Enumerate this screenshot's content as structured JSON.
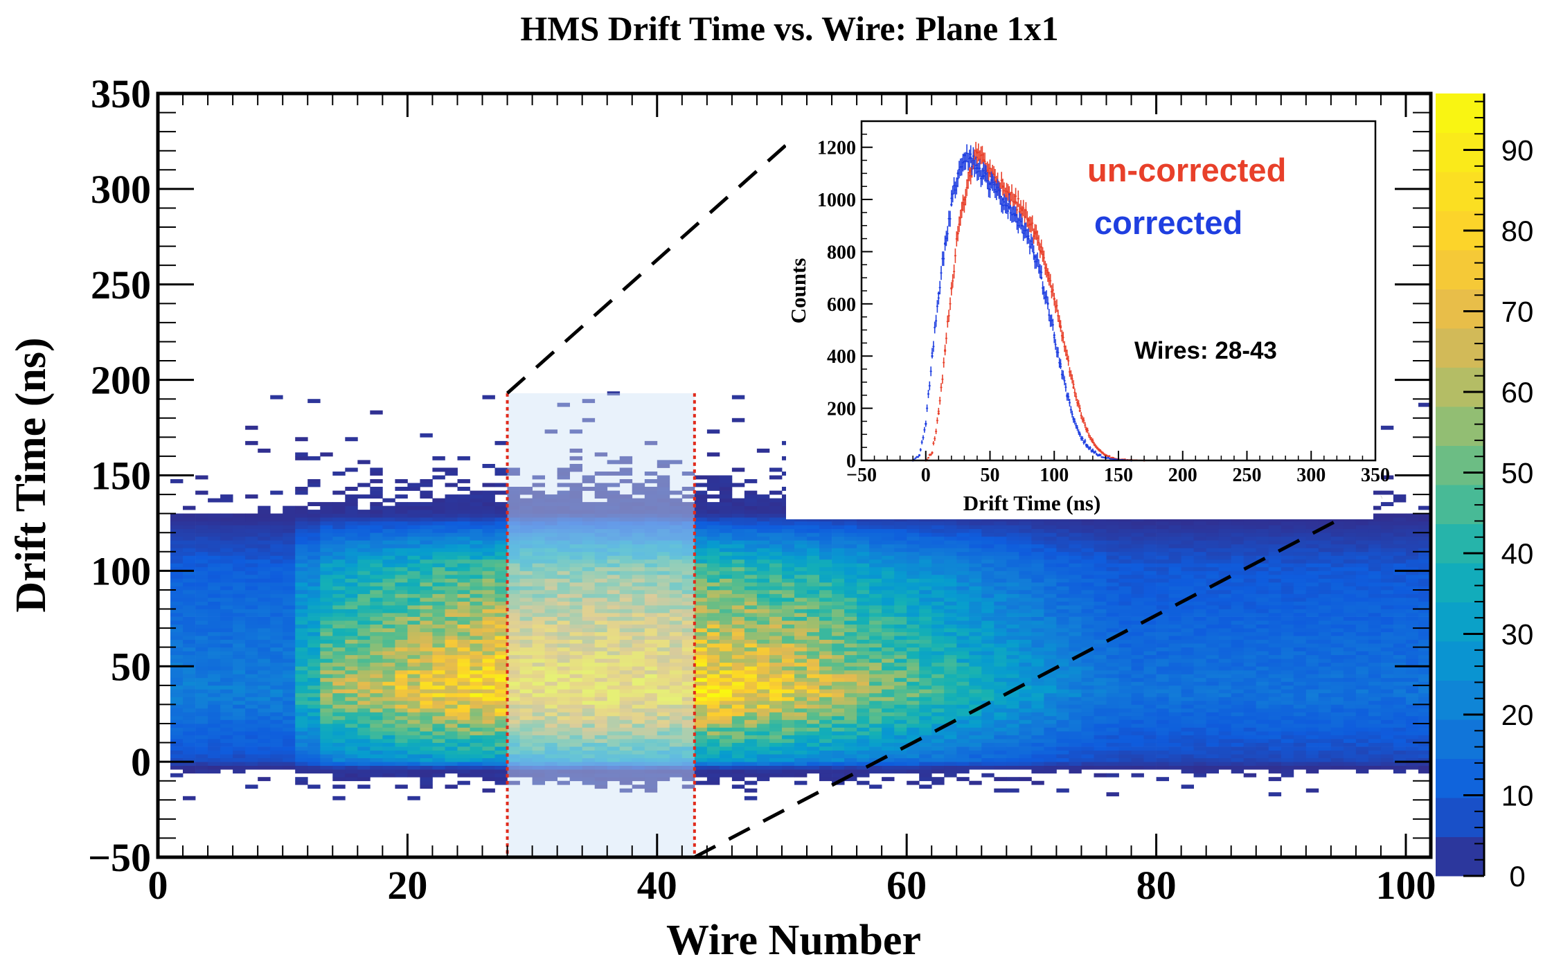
{
  "chart_data": [
    {
      "type": "heatmap",
      "title": "HMS Drift Time vs. Wire: Plane 1x1",
      "xlabel": "Wire Number",
      "ylabel": "Drift Time (ns)",
      "xlim": [
        0,
        102
      ],
      "ylim": [
        -50,
        350
      ],
      "x_ticks": [
        "0",
        "20",
        "40",
        "60",
        "80",
        "100"
      ],
      "y_ticks": [
        "−50",
        "0",
        "50",
        "100",
        "150",
        "200",
        "250",
        "300",
        "350"
      ],
      "colorbar": {
        "range": [
          0,
          97
        ],
        "ticks": [
          "0",
          "10",
          "20",
          "30",
          "40",
          "50",
          "60",
          "70",
          "80",
          "90"
        ]
      },
      "highlight_wires": [
        28,
        43
      ],
      "highlight_drift_time_max": 193,
      "density_summary": {
        "peak_drift_time_ns": 35,
        "peak_wire": 35,
        "peak_counts": 90,
        "drift_time_core_range_ns": [
          0,
          120
        ]
      }
    },
    {
      "type": "line",
      "title": "",
      "xlabel": "Drift Time (ns)",
      "ylabel": "Counts",
      "xlim": [
        -50,
        350
      ],
      "ylim": [
        0,
        1300
      ],
      "x_ticks": [
        "−50",
        "0",
        "50",
        "100",
        "150",
        "200",
        "250",
        "300",
        "350"
      ],
      "y_ticks": [
        "0",
        "200",
        "400",
        "600",
        "800",
        "1000",
        "1200"
      ],
      "annotation": "Wires: 28-43",
      "series": [
        {
          "name": "un-corrected",
          "color": "#e8402a",
          "x": [
            0,
            5,
            10,
            15,
            20,
            25,
            30,
            35,
            40,
            45,
            50,
            55,
            60,
            65,
            70,
            75,
            80,
            85,
            90,
            95,
            100,
            105,
            110,
            115,
            120,
            125,
            130,
            135,
            140,
            145,
            150,
            160,
            170
          ],
          "values": [
            0,
            30,
            180,
            420,
            660,
            870,
            1000,
            1110,
            1180,
            1150,
            1100,
            1070,
            1050,
            1020,
            990,
            960,
            920,
            870,
            800,
            720,
            620,
            510,
            390,
            280,
            190,
            120,
            70,
            40,
            20,
            10,
            5,
            2,
            0
          ]
        },
        {
          "name": "corrected",
          "color": "#1f3fe0",
          "x": [
            -10,
            -5,
            0,
            5,
            10,
            15,
            20,
            25,
            30,
            35,
            40,
            45,
            50,
            55,
            60,
            65,
            70,
            75,
            80,
            85,
            90,
            95,
            100,
            105,
            110,
            115,
            120,
            125,
            130,
            135,
            140,
            150,
            160
          ],
          "values": [
            0,
            20,
            140,
            400,
            640,
            830,
            980,
            1100,
            1170,
            1160,
            1120,
            1090,
            1060,
            1030,
            1000,
            970,
            940,
            900,
            850,
            780,
            700,
            600,
            480,
            360,
            250,
            160,
            100,
            60,
            35,
            20,
            10,
            3,
            0
          ]
        }
      ]
    }
  ]
}
